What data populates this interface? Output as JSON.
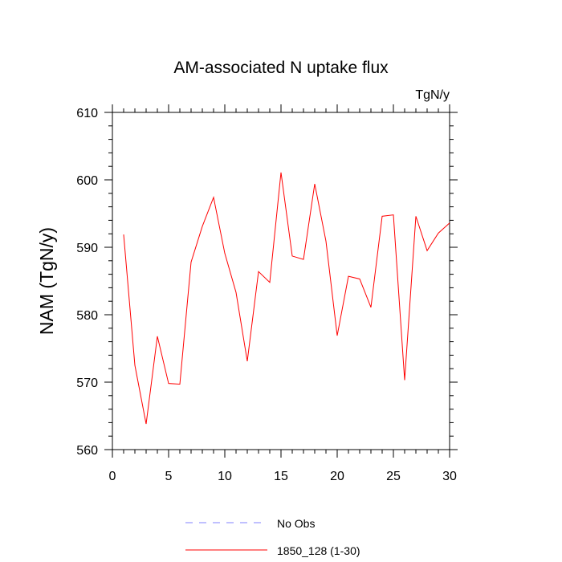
{
  "chart_data": {
    "type": "line",
    "title": "AM-associated N uptake flux",
    "units_label": "TgN/y",
    "xlabel": "",
    "ylabel": "NAM  (TgN/y)",
    "xlim": [
      0,
      30
    ],
    "ylim": [
      560,
      610
    ],
    "x_ticks": [
      0,
      5,
      10,
      15,
      20,
      25,
      30
    ],
    "y_ticks": [
      560,
      570,
      580,
      590,
      600,
      610
    ],
    "grid": false,
    "legend_position": "bottom-center",
    "series": [
      {
        "name": "No Obs",
        "color": "#8080ff",
        "style": "dashed",
        "x": [],
        "values": []
      },
      {
        "name": "1850_128 (1-30)",
        "color": "#ff0000",
        "style": "solid",
        "x": [
          1,
          2,
          3,
          4,
          5,
          6,
          7,
          8,
          9,
          10,
          11,
          12,
          13,
          14,
          15,
          16,
          17,
          18,
          19,
          20,
          21,
          22,
          23,
          24,
          25,
          26,
          27,
          28,
          29,
          30
        ],
        "values": [
          591.9,
          572.5,
          563.8,
          576.8,
          569.8,
          569.7,
          587.8,
          593.1,
          597.4,
          589.1,
          583.3,
          573.1,
          586.4,
          584.8,
          601.1,
          588.7,
          588.2,
          599.4,
          590.9,
          576.9,
          585.7,
          585.3,
          581.1,
          594.6,
          594.8,
          570.3,
          594.6,
          589.5,
          592.1,
          593.6
        ]
      }
    ]
  }
}
